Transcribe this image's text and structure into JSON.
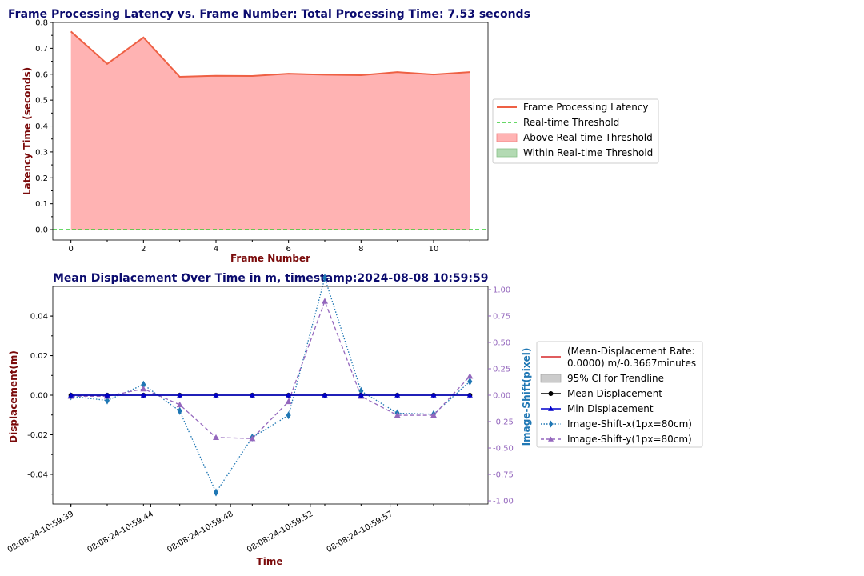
{
  "chart_data": [
    {
      "type": "area",
      "title": "Frame Processing Latency vs. Frame Number: Total Processing Time: 7.53 seconds",
      "xlabel": "Frame Number",
      "ylabel": "Latency Time (seconds)",
      "xlim": [
        -0.5,
        11.5
      ],
      "ylim": [
        -0.04,
        0.8
      ],
      "xticks": [
        0,
        2,
        4,
        6,
        8,
        10
      ],
      "yticks": [
        0.0,
        0.1,
        0.2,
        0.3,
        0.4,
        0.5,
        0.6,
        0.7,
        0.8
      ],
      "x": [
        0,
        1,
        2,
        3,
        4,
        5,
        6,
        7,
        8,
        9,
        10,
        11
      ],
      "series": [
        {
          "name": "Frame Processing Latency",
          "values": [
            0.765,
            0.64,
            0.742,
            0.59,
            0.594,
            0.593,
            0.602,
            0.598,
            0.596,
            0.608,
            0.599,
            0.608
          ],
          "color": "#ee6044"
        }
      ],
      "threshold": {
        "name": "Real-time Threshold",
        "value": 0.0,
        "color": "#33cc33"
      },
      "legend": [
        {
          "label": "Frame Processing Latency",
          "kind": "line",
          "color": "#ee6044"
        },
        {
          "label": "Real-time Threshold",
          "kind": "dash",
          "color": "#33cc33"
        },
        {
          "label": "Above Real-time Threshold",
          "kind": "patch",
          "color": "#ffb3b3"
        },
        {
          "label": "Within Real-time Threshold",
          "kind": "patch",
          "color": "#b3dab3"
        }
      ],
      "legend_position": "right"
    },
    {
      "type": "line",
      "title": "Mean Displacement Over Time in m, timestamp:2024-08-08 10:59:59",
      "xlabel": "Time",
      "ylabel": "Displacement(m)",
      "y2label": "Image-Shift(pixel)",
      "ylim": [
        -0.055,
        0.055
      ],
      "y2lim": [
        -1.03,
        1.03
      ],
      "yticks": [
        -0.04,
        -0.02,
        0.0,
        0.02,
        0.04
      ],
      "y2ticks": [
        -1.0,
        -0.75,
        -0.5,
        -0.25,
        0.0,
        0.25,
        0.5,
        0.75,
        1.0
      ],
      "xlim": [
        -0.5,
        11.5
      ],
      "x_tick_labels": [
        "08:08:24-10:59:39",
        "08:08:24-10:59:44",
        "08:08:24-10:59:48",
        "08:08:24-10:59:52",
        "08:08:24-10:59:57"
      ],
      "x_tick_index": [
        0,
        2.2,
        4.4,
        6.6,
        8.8
      ],
      "x": [
        0,
        1,
        2,
        3,
        4,
        5,
        6,
        7,
        8,
        9,
        10,
        11
      ],
      "series": [
        {
          "name": "Mean Displacement",
          "axis": "left",
          "values": [
            0,
            0,
            0,
            0,
            0,
            0,
            0,
            0,
            0,
            0,
            0,
            0
          ],
          "color": "#000000",
          "marker": "circle",
          "style": "solid"
        },
        {
          "name": "Min Displacement",
          "axis": "left",
          "values": [
            0,
            0,
            0,
            0,
            0,
            0,
            0,
            0,
            0,
            0,
            0,
            0
          ],
          "color": "#0000cc",
          "marker": "triangle",
          "style": "solid"
        },
        {
          "name": "Image-Shift-x(1px=80cm)",
          "axis": "right",
          "values": [
            -0.01,
            -0.05,
            0.1,
            -0.15,
            -0.92,
            -0.4,
            -0.19,
            1.11,
            0.04,
            -0.17,
            -0.18,
            0.13
          ],
          "color": "#1f77b4",
          "marker": "diamond",
          "style": "dotted"
        },
        {
          "name": "Image-Shift-y(1px=80cm)",
          "axis": "right",
          "values": [
            -0.01,
            -0.01,
            0.06,
            -0.09,
            -0.4,
            -0.41,
            -0.06,
            0.89,
            -0.01,
            -0.19,
            -0.19,
            0.18
          ],
          "color": "#9467bd",
          "marker": "triangle",
          "style": "dashed"
        }
      ],
      "legend": [
        {
          "label": "(Mean-Displacement Rate:",
          "label2": " 0.0000) m/-0.3667minutes",
          "kind": "line",
          "color": "#d62728"
        },
        {
          "label": "95% CI for Trendline",
          "kind": "patch",
          "color": "#cccccc"
        },
        {
          "label": "Mean Displacement",
          "kind": "line-circle",
          "color": "#000000"
        },
        {
          "label": "Min Displacement",
          "kind": "line-triangle",
          "color": "#0000cc"
        },
        {
          "label": "Image-Shift-x(1px=80cm)",
          "kind": "dotted-diamond",
          "color": "#1f77b4"
        },
        {
          "label": "Image-Shift-y(1px=80cm)",
          "kind": "dashed-triangle",
          "color": "#9467bd"
        }
      ],
      "legend_position": "right"
    }
  ]
}
